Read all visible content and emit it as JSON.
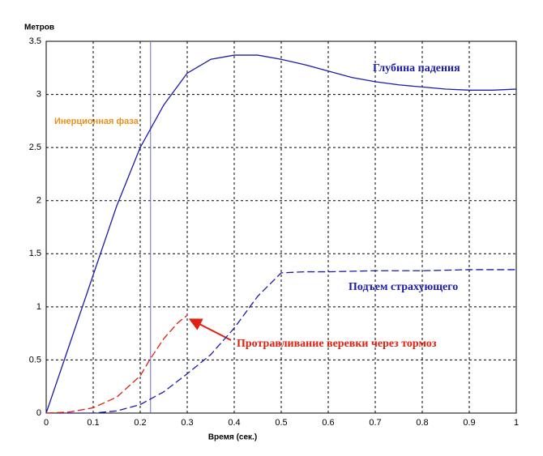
{
  "chart_data": {
    "type": "line",
    "ylabel": "Метров",
    "xlabel": "Время (сек.)",
    "annotation": "Инерционная фаза",
    "annotation_color": "#e8901c",
    "vline": 0.222,
    "vline_color": "#6a6ad0",
    "xlim": [
      0,
      1
    ],
    "xticks": [
      0,
      0.1,
      0.2,
      0.3,
      0.4,
      0.5,
      0.6,
      0.7,
      0.8,
      0.9,
      1
    ],
    "ylim": [
      0,
      3.5
    ],
    "yticks": [
      0,
      0.5,
      1,
      1.5,
      2,
      2.5,
      3,
      3.5
    ],
    "grid": true,
    "series": [
      {
        "name": "Глубина падения",
        "color": "#1c1ca8",
        "style": "solid",
        "x": [
          0,
          0.05,
          0.1,
          0.15,
          0.2,
          0.25,
          0.3,
          0.35,
          0.4,
          0.45,
          0.5,
          0.55,
          0.6,
          0.65,
          0.7,
          0.75,
          0.8,
          0.85,
          0.9,
          0.95,
          1
        ],
        "values": [
          0,
          0.65,
          1.3,
          1.95,
          2.5,
          2.9,
          3.2,
          3.33,
          3.37,
          3.37,
          3.33,
          3.28,
          3.22,
          3.16,
          3.12,
          3.09,
          3.07,
          3.05,
          3.04,
          3.04,
          3.05
        ]
      },
      {
        "name": "Подъем страхующего",
        "color": "#1c1ca8",
        "style": "dashed",
        "x": [
          0,
          0.1,
          0.15,
          0.2,
          0.25,
          0.3,
          0.35,
          0.4,
          0.45,
          0.5,
          0.55,
          0.6,
          0.7,
          0.8,
          0.9,
          1
        ],
        "values": [
          0,
          0,
          0.02,
          0.08,
          0.2,
          0.37,
          0.55,
          0.8,
          1.1,
          1.32,
          1.33,
          1.33,
          1.34,
          1.34,
          1.35,
          1.35
        ]
      },
      {
        "name": "Протравливание веревки через тормоз",
        "color": "#e02010",
        "style": "dashed",
        "x": [
          0,
          0.05,
          0.1,
          0.15,
          0.2,
          0.22,
          0.25,
          0.28,
          0.3
        ],
        "values": [
          0,
          0.01,
          0.05,
          0.15,
          0.35,
          0.5,
          0.7,
          0.85,
          0.92
        ]
      }
    ]
  }
}
